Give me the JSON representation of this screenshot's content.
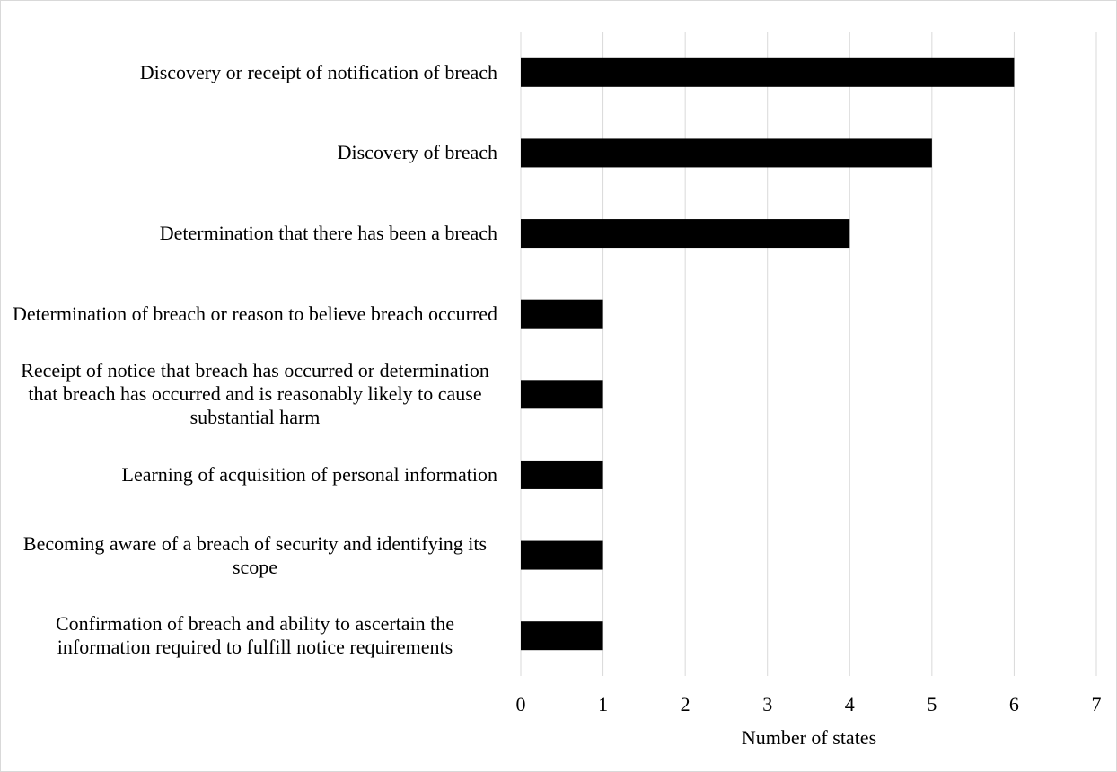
{
  "chart_data": {
    "type": "bar",
    "orientation": "horizontal",
    "categories": [
      "Discovery or receipt of notification of breach",
      "Discovery of breach",
      "Determination that there has been a breach",
      "Determination of breach or reason to believe breach occurred",
      "Receipt of notice that breach has occurred or determination that breach has occurred and is reasonably likely to cause substantial harm",
      "Learning of acquisition of personal information",
      "Becoming aware of a breach of security and identifying its scope",
      "Confirmation of breach and ability to ascertain the information required to fulfill notice requirements"
    ],
    "values": [
      6,
      5,
      4,
      1,
      1,
      1,
      1,
      1
    ],
    "color": "#000000",
    "xlabel": "Number of states",
    "xlim": [
      0,
      7
    ],
    "xticks": [
      0,
      1,
      2,
      3,
      4,
      5,
      6,
      7
    ],
    "grid": true
  }
}
